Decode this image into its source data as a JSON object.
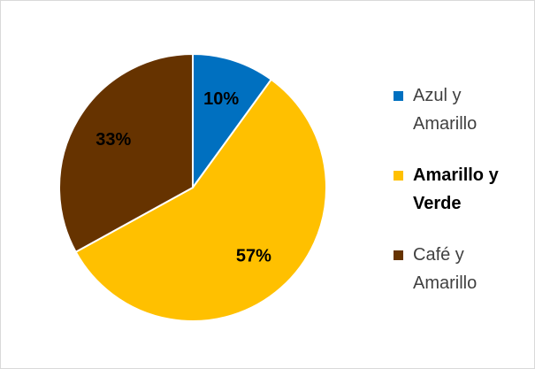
{
  "chart_data": {
    "type": "pie",
    "categories": [
      "Azul y Amarillo",
      "Amarillo y Verde",
      "Café y Amarillo"
    ],
    "values": [
      10,
      57,
      33
    ],
    "value_labels": [
      "10%",
      "57%",
      "33%"
    ],
    "colors": [
      "#0070c0",
      "#ffc000",
      "#663300"
    ],
    "legend": "right"
  }
}
